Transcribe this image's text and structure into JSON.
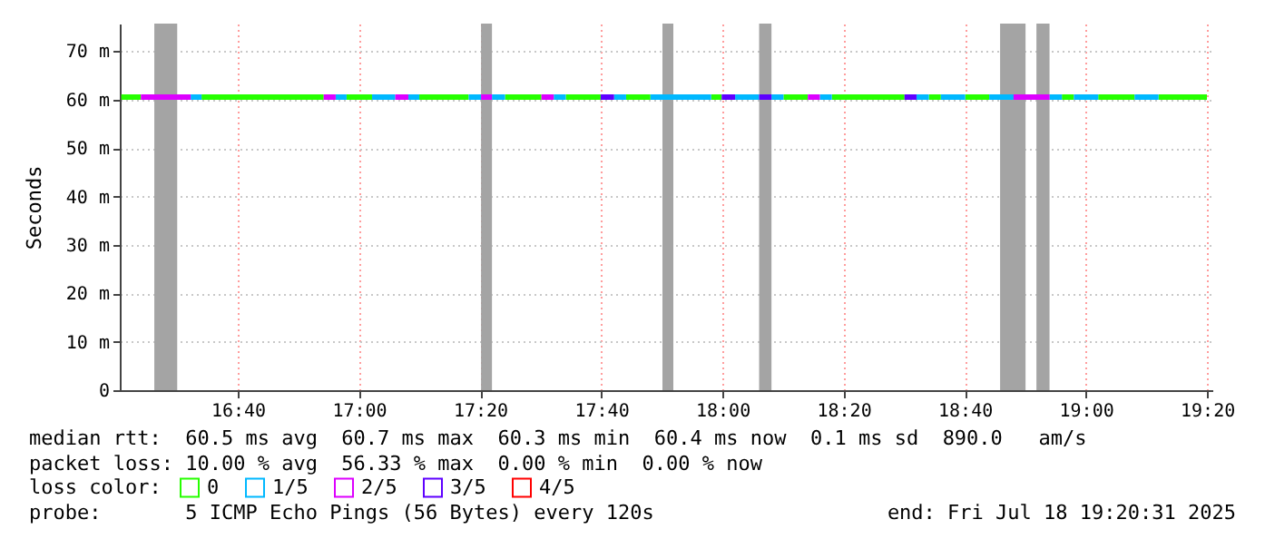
{
  "chart_data": {
    "type": "line",
    "ylabel": "Seconds",
    "xlim": [
      16.342,
      19.348
    ],
    "xticks": [
      {
        "value": 16.6667,
        "label": "16:40"
      },
      {
        "value": 17,
        "label": "17:00"
      },
      {
        "value": 17.3333,
        "label": "17:20"
      },
      {
        "value": 17.6667,
        "label": "17:40"
      },
      {
        "value": 18,
        "label": "18:00"
      },
      {
        "value": 18.3333,
        "label": "18:20"
      },
      {
        "value": 18.6667,
        "label": "18:40"
      },
      {
        "value": 19,
        "label": "19:00"
      },
      {
        "value": 19.3333,
        "label": "19:20"
      }
    ],
    "ylim": [
      0,
      75.7
    ],
    "yticks": [
      0,
      {
        "value": 10,
        "label": "10 m"
      },
      {
        "value": 20,
        "label": "20 m"
      },
      {
        "value": 30,
        "label": "30 m"
      },
      {
        "value": 40,
        "label": "40 m"
      },
      {
        "value": 50,
        "label": "50 m"
      },
      {
        "value": 60,
        "label": "60 m"
      },
      {
        "value": 70,
        "label": "70 m"
      }
    ],
    "grid": true,
    "legend": "bottom",
    "legend_title": "loss color:",
    "series": [
      {
        "name": "0",
        "color": "#26ff00",
        "x": [
          16.346,
          16.4,
          16.48,
          16.567,
          16.903,
          16.93,
          16.966,
          17.036,
          17.1,
          17.166,
          17.302,
          17.35,
          17.402,
          17.502,
          17.53,
          17.569,
          17.665,
          17.7,
          17.735,
          17.802,
          17.88,
          17.969,
          17.998,
          18.08,
          18.168,
          18.235,
          18.27,
          18.301,
          18.501,
          18.53,
          18.568,
          18.601,
          18.63,
          18.668,
          18.734,
          18.83,
          18.934,
          18.967,
          19.0,
          19.034,
          19.134,
          19.17,
          19.2,
          19.333
        ],
        "values": [
          60.5,
          60.5,
          null,
          60.5,
          60.5,
          null,
          60.5,
          60.5,
          null,
          60.5,
          60.5,
          null,
          60.5,
          60.5,
          null,
          60.5,
          60.5,
          null,
          60.5,
          60.5,
          null,
          60.5,
          60.5,
          null,
          60.5,
          60.5,
          null,
          60.5,
          60.5,
          null,
          60.5,
          60.5,
          null,
          60.5,
          60.5,
          null,
          60.5,
          60.5,
          null,
          60.5,
          60.5,
          null,
          60.5,
          60.5
        ]
      },
      {
        "name": "1/5",
        "color": "#00b8ff",
        "x": [
          16.537,
          16.567,
          16.75,
          16.936,
          16.966,
          17.0,
          17.036,
          17.1,
          17.12,
          17.136,
          17.166,
          17.23,
          17.302,
          17.336,
          17.35,
          17.366,
          17.402,
          17.47,
          17.536,
          17.569,
          17.63,
          17.702,
          17.735,
          17.77,
          17.802,
          17.969,
          18.0,
          18.035,
          18.101,
          18.12,
          18.135,
          18.168,
          18.22,
          18.268,
          18.301,
          18.42,
          18.534,
          18.568,
          18.585,
          18.601,
          18.668,
          18.7,
          18.734,
          18.801,
          18.85,
          18.9,
          18.934,
          18.95,
          18.967,
          19.034,
          19.08,
          19.134,
          19.2
        ],
        "values": [
          60.5,
          60.5,
          null,
          60.5,
          60.5,
          null,
          60.5,
          60.5,
          null,
          60.5,
          60.5,
          null,
          60.5,
          60.5,
          null,
          60.5,
          60.5,
          null,
          60.5,
          60.5,
          null,
          60.5,
          60.5,
          null,
          60.5,
          60.5,
          null,
          60.5,
          60.5,
          null,
          60.5,
          60.5,
          null,
          60.5,
          60.5,
          null,
          60.5,
          60.5,
          null,
          60.5,
          60.5,
          null,
          60.5,
          60.5,
          null,
          60.5,
          60.5,
          null,
          60.5,
          60.5,
          null,
          60.5,
          60.5
        ]
      },
      {
        "name": "2/5",
        "color": "#dd00ff",
        "x": [
          16.4,
          16.537,
          16.7,
          16.903,
          16.936,
          17.0,
          17.1,
          17.136,
          17.2,
          17.336,
          17.366,
          17.45,
          17.502,
          17.536,
          17.9,
          18.235,
          18.268,
          18.5,
          18.801,
          18.9
        ],
        "values": [
          60.5,
          60.5,
          null,
          60.5,
          60.5,
          null,
          60.5,
          60.5,
          null,
          60.5,
          60.5,
          null,
          60.5,
          60.5,
          null,
          60.5,
          60.5,
          null,
          60.5,
          60.5
        ]
      },
      {
        "name": "3/5",
        "color": "#5e00ff",
        "x": [
          17.665,
          17.702,
          17.85,
          17.998,
          18.035,
          18.07,
          18.101,
          18.135,
          18.3,
          18.501,
          18.534
        ],
        "values": [
          60.5,
          60.5,
          null,
          60.5,
          60.5,
          null,
          60.5,
          60.5,
          null,
          60.5,
          60.5
        ]
      },
      {
        "name": "4/5",
        "color": "#ff0000"
      }
    ],
    "bands": [
      {
        "axis": "x",
        "from": 16.437,
        "to": 16.5,
        "color": "#a4a4a4"
      },
      {
        "axis": "x",
        "from": 17.336,
        "to": 17.366,
        "color": "#a4a4a4"
      },
      {
        "axis": "x",
        "from": 17.835,
        "to": 17.865,
        "color": "#a4a4a4"
      },
      {
        "axis": "x",
        "from": 18.101,
        "to": 18.135,
        "color": "#a4a4a4"
      },
      {
        "axis": "x",
        "from": 18.764,
        "to": 18.834,
        "color": "#a4a4a4"
      },
      {
        "axis": "x",
        "from": 18.864,
        "to": 18.9,
        "color": "#a4a4a4"
      }
    ],
    "annotations": [
      "median rtt:  60.5 ms avg  60.7 ms max  60.3 ms min  60.4 ms now  0.1 ms sd  890.0   am/s",
      "packet loss: 10.00 % avg  56.33 % max  0.00 % min  0.00 % now",
      "probe:       5 ICMP Echo Pings (56 Bytes) every 120s",
      "end: Fri Jul 18 19:20:31 2025"
    ]
  }
}
